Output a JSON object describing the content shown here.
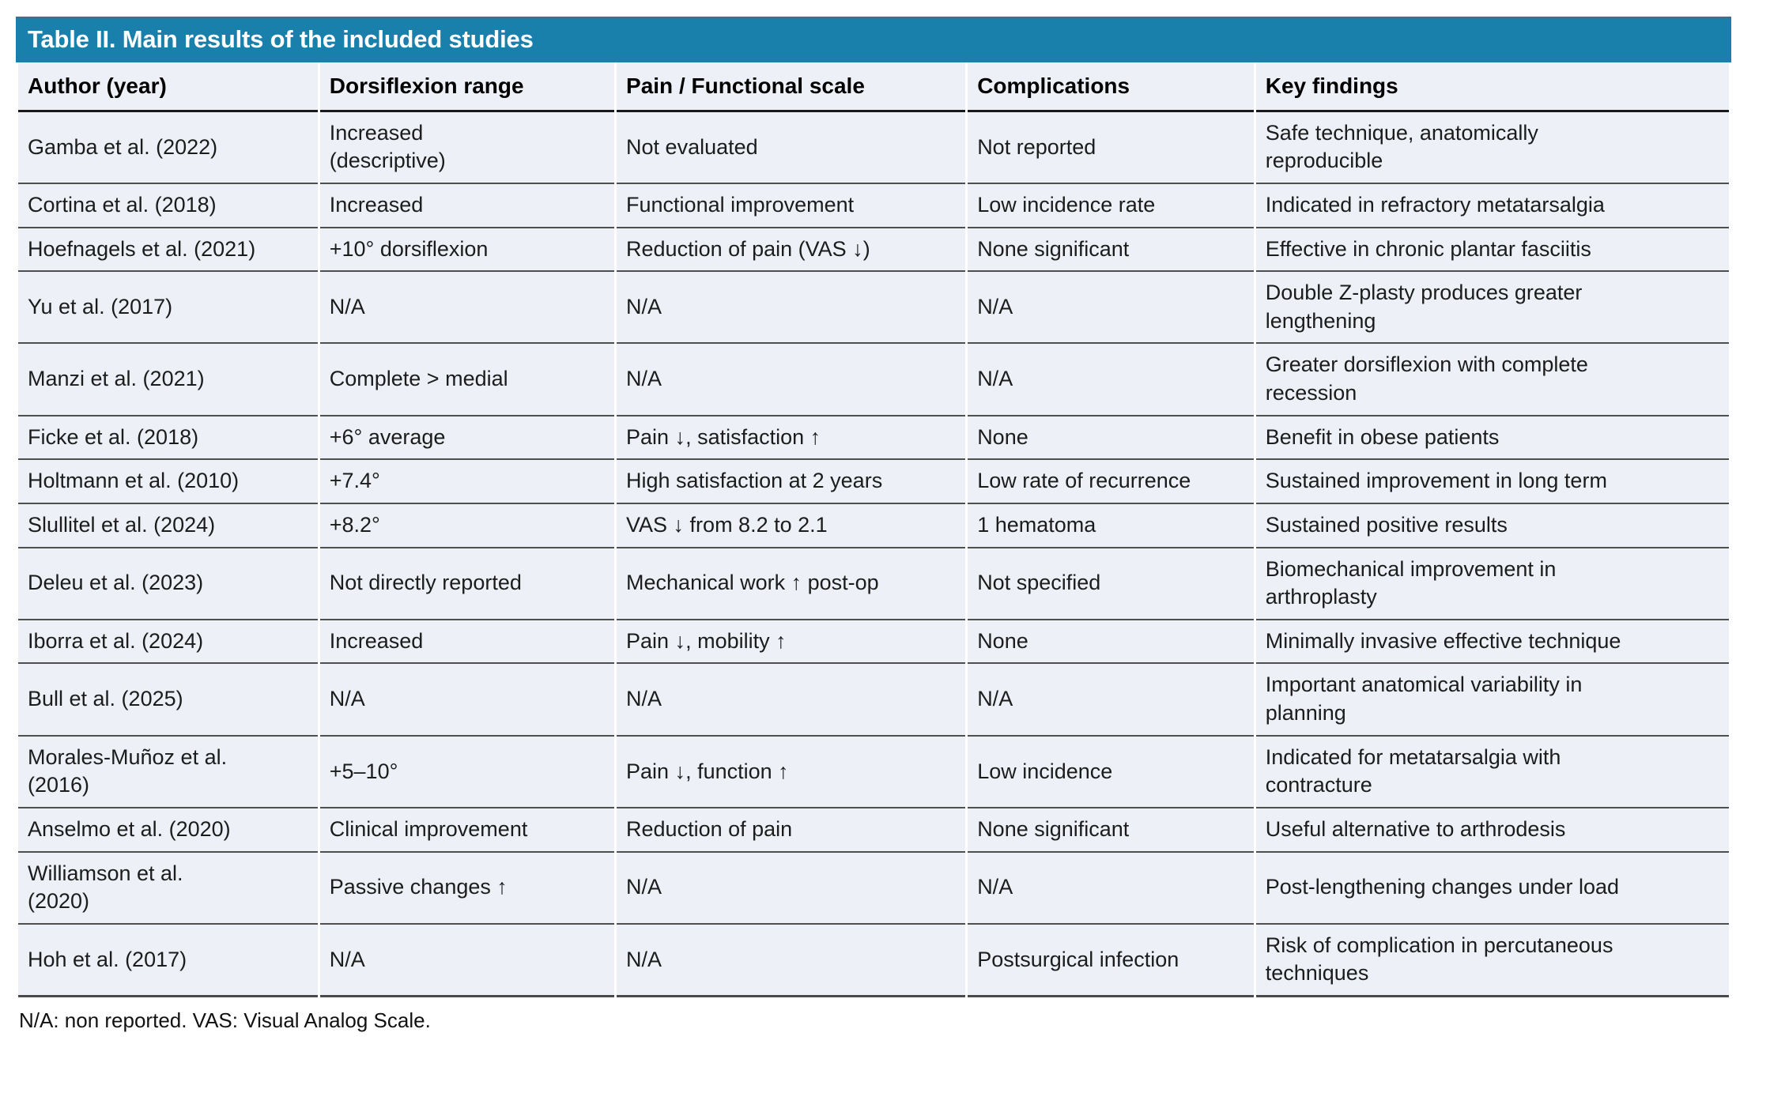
{
  "table": {
    "title": "Table II. Main results of the included studies",
    "columns": [
      "Author (year)",
      "Dorsiflexion range",
      "Pain / Functional scale",
      "Complications",
      "Key findings"
    ],
    "rows": [
      [
        "Gamba et al. (2022)",
        "Increased\n(descriptive)",
        "Not evaluated",
        "Not reported",
        "Safe technique, anatomically\nreproducible"
      ],
      [
        "Cortina et al. (2018)",
        "Increased",
        "Functional improvement",
        "Low incidence rate",
        "Indicated in refractory metatarsalgia"
      ],
      [
        "Hoefnagels et al. (2021)",
        "+10° dorsiflexion",
        "Reduction of pain (VAS ↓)",
        "None significant",
        "Effective in chronic plantar fasciitis"
      ],
      [
        "Yu et al. (2017)",
        "N/A",
        "N/A",
        "N/A",
        "Double Z-plasty produces greater\nlengthening"
      ],
      [
        "Manzi et al. (2021)",
        "Complete > medial",
        "N/A",
        "N/A",
        "Greater dorsiflexion with complete\nrecession"
      ],
      [
        "Ficke et al. (2018)",
        "+6° average",
        "Pain ↓, satisfaction ↑",
        "None",
        "Benefit in obese patients"
      ],
      [
        "Holtmann et al. (2010)",
        "+7.4°",
        "High satisfaction at 2 years",
        "Low rate of recurrence",
        "Sustained improvement in long term"
      ],
      [
        "Slullitel et al. (2024)",
        "+8.2°",
        "VAS ↓ from 8.2 to 2.1",
        "1 hematoma",
        "Sustained positive results"
      ],
      [
        "Deleu et al. (2023)",
        "Not directly reported",
        "Mechanical work ↑ post-op",
        "Not specified",
        "Biomechanical improvement in\narthroplasty"
      ],
      [
        "Iborra et al. (2024)",
        "Increased",
        "Pain ↓, mobility ↑",
        "None",
        "Minimally invasive effective technique"
      ],
      [
        "Bull et al. (2025)",
        "N/A",
        "N/A",
        "N/A",
        "Important anatomical variability in\nplanning"
      ],
      [
        "Morales-Muñoz et al.\n(2016)",
        "+5–10°",
        "Pain ↓, function ↑",
        "Low incidence",
        "Indicated for metatarsalgia with\ncontracture"
      ],
      [
        "Anselmo et al. (2020)",
        "Clinical improvement",
        "Reduction of pain",
        "None significant",
        "Useful alternative to arthrodesis"
      ],
      [
        "Williamson et al.\n(2020)",
        "Passive changes ↑",
        "N/A",
        "N/A",
        "Post-lengthening changes under load"
      ],
      [
        "Hoh et al. (2017)",
        "N/A",
        "N/A",
        "Postsurgical infection",
        "Risk of complication in percutaneous\ntechniques"
      ]
    ],
    "footnote": "N/A: non reported. VAS: Visual Analog Scale.",
    "colors": {
      "title_bar_bg": "#1980ab",
      "title_text": "#ffffff",
      "row_bg": "#edf0f7",
      "row_border": "#4f4f4f",
      "header_border": "#191919"
    }
  }
}
